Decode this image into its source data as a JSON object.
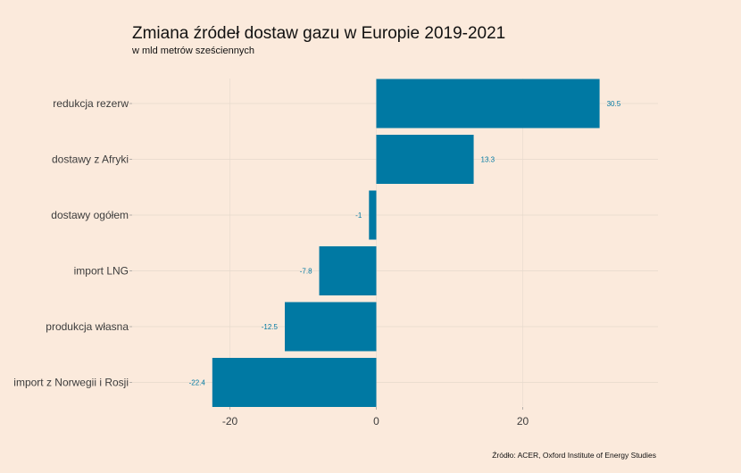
{
  "chart_data": {
    "type": "bar",
    "orientation": "horizontal",
    "title": "Zmiana źródeł dostaw gazu w Europie 2019-2021",
    "subtitle": "w mld metrów sześciennych",
    "caption": "Źródło: ACER, Oxford Institute of Energy Studies",
    "xlabel": "",
    "ylabel": "",
    "categories": [
      "redukcja rezerw",
      "dostawy z Afryki",
      "dostawy ogółem",
      "import LNG",
      "produkcja własna",
      "import z Norwegii i Rosji"
    ],
    "values": [
      30.5,
      13.3,
      -1,
      -7.8,
      -12.5,
      -22.4
    ],
    "data_labels": [
      "30.5",
      "13.3",
      "-1",
      "-7.8",
      "-12.5",
      "-22.4"
    ],
    "xticks": [
      -20,
      0,
      20
    ],
    "xtick_labels": [
      "-20",
      "0",
      "20"
    ],
    "xlim": [
      -33,
      40
    ],
    "grid": true,
    "colors": {
      "background": "#fbeadc",
      "bar": "#0079a3",
      "label": "#0079a3",
      "grid": "#e6d9cd"
    }
  }
}
